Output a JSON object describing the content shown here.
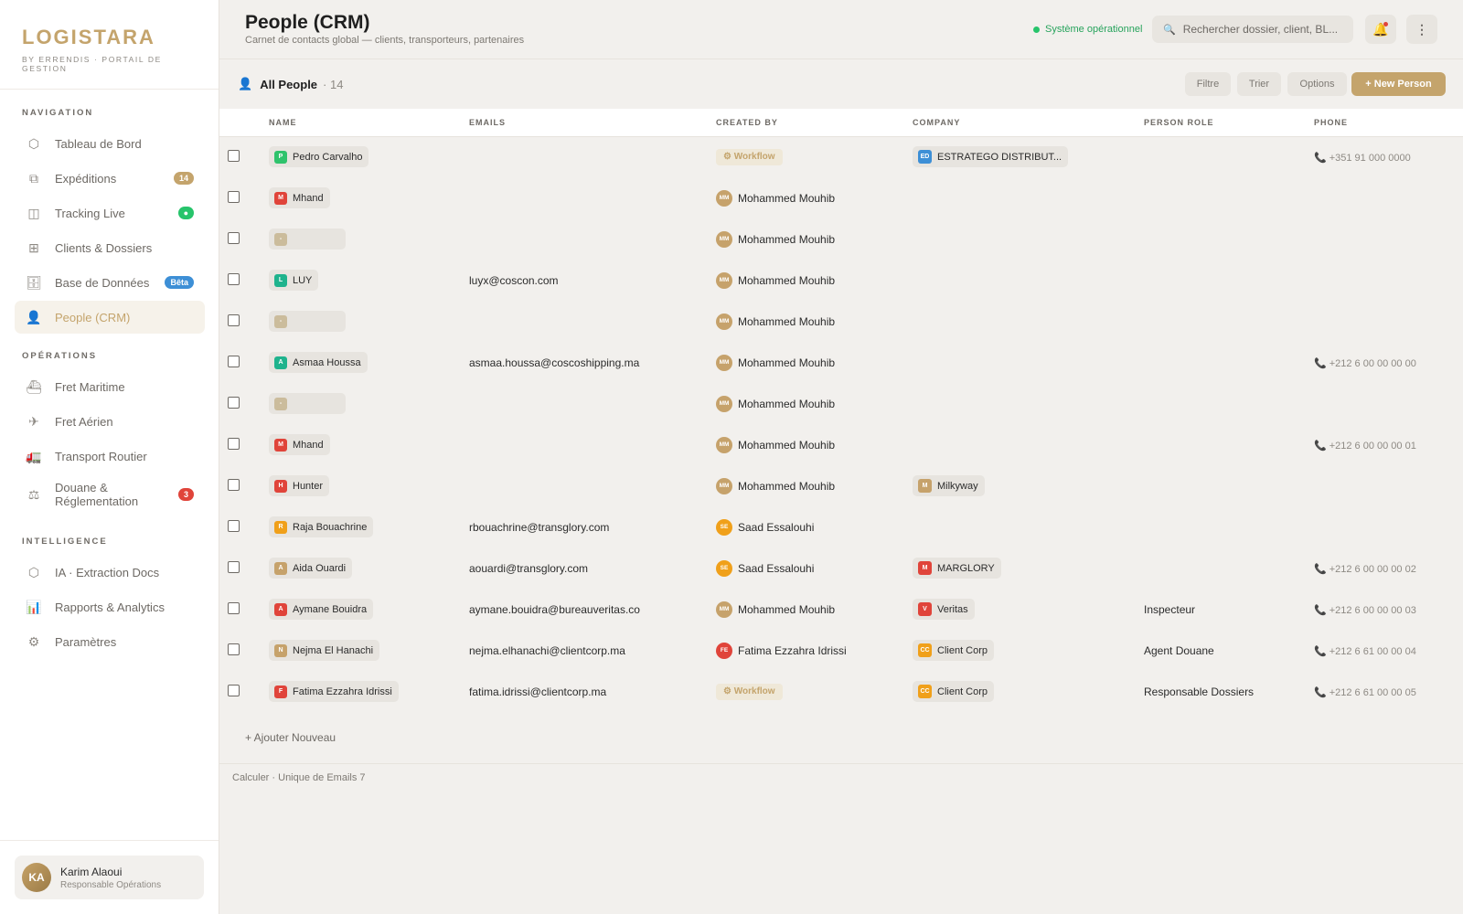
{
  "brand": {
    "name": "LOGISTARA",
    "subtitle": "BY ERRENDIS · PORTAIL DE GESTION"
  },
  "nav": {
    "sections": [
      {
        "title": "NAVIGATION",
        "items": [
          {
            "label": "Tableau de Bord",
            "icon": "dashboard-icon",
            "glyph": "⬡"
          },
          {
            "label": "Expéditions",
            "icon": "shipments-icon",
            "glyph": "⧉",
            "badge": "14",
            "badge_color": "gold"
          },
          {
            "label": "Tracking Live",
            "icon": "tracking-icon",
            "glyph": "◫",
            "badge": "●",
            "badge_color": "green"
          },
          {
            "label": "Clients & Dossiers",
            "icon": "clients-icon",
            "glyph": "⊞"
          },
          {
            "label": "Base de Données",
            "icon": "database-icon",
            "glyph": "🗄",
            "badge": "Bêta",
            "badge_color": "blue"
          },
          {
            "label": "People (CRM)",
            "icon": "person-icon",
            "glyph": "👤",
            "active": true
          }
        ]
      },
      {
        "title": "OPÉRATIONS",
        "items": [
          {
            "label": "Fret Maritime",
            "icon": "ship-icon",
            "glyph": "⛴"
          },
          {
            "label": "Fret Aérien",
            "icon": "plane-icon",
            "glyph": "✈"
          },
          {
            "label": "Transport Routier",
            "icon": "truck-icon",
            "glyph": "🚛"
          },
          {
            "label": "Douane & Réglementation",
            "icon": "scale-icon",
            "glyph": "⚖",
            "badge": "3",
            "badge_color": "red",
            "tall": true
          }
        ]
      },
      {
        "title": "INTELLIGENCE",
        "items": [
          {
            "label": "IA · Extraction Docs",
            "icon": "ai-icon",
            "glyph": "⬡"
          },
          {
            "label": "Rapports & Analytics",
            "icon": "chart-icon",
            "glyph": "📊"
          },
          {
            "label": "Paramètres",
            "icon": "gear-icon",
            "glyph": "⚙"
          }
        ]
      }
    ]
  },
  "user": {
    "initials": "KA",
    "name": "Karim Alaoui",
    "role": "Responsable Opérations"
  },
  "header": {
    "title": "People (CRM)",
    "subtitle": "Carnet de contacts global — clients, transporteurs, partenaires",
    "status": "Système opérationnel",
    "search_placeholder": "Rechercher dossier, client, BL..."
  },
  "toolbar": {
    "view_name": "All People",
    "view_count": "· 14",
    "filter": "Filtre",
    "sort": "Trier",
    "options": "Options",
    "new_person": "+ New Person"
  },
  "table": {
    "columns": [
      "NAME",
      "EMAILS",
      "CREATED BY",
      "COMPANY",
      "PERSON ROLE",
      "PHONE"
    ],
    "rows": [
      {
        "initial": "P",
        "color": "#2fc36c",
        "name": "Pedro Carvalho",
        "email": "",
        "created_by": {
          "type": "workflow",
          "label": "⚙ Workflow"
        },
        "company": {
          "initial": "ED",
          "color": "#3d8fd6",
          "name": "ESTRATEGO DISTRIBUT..."
        },
        "role": "",
        "phone": "+351 91 000 0000"
      },
      {
        "initial": "M",
        "color": "#e0443a",
        "name": "Mhand",
        "email": "",
        "created_by": {
          "initials": "MM",
          "color": "#c6a26b",
          "name": "Mohammed Mouhib"
        },
        "company": null,
        "role": "",
        "phone": ""
      },
      {
        "initial": "-",
        "color": "#cbbc9c",
        "name": "",
        "email": "",
        "created_by": {
          "initials": "MM",
          "color": "#c6a26b",
          "name": "Mohammed Mouhib"
        },
        "company": null,
        "role": "",
        "phone": ""
      },
      {
        "initial": "L",
        "color": "#1fb38d",
        "name": "LUY",
        "email": "luyx@coscon.com",
        "created_by": {
          "initials": "MM",
          "color": "#c6a26b",
          "name": "Mohammed Mouhib"
        },
        "company": null,
        "role": "",
        "phone": ""
      },
      {
        "initial": "-",
        "color": "#cbbc9c",
        "name": "",
        "email": "",
        "created_by": {
          "initials": "MM",
          "color": "#c6a26b",
          "name": "Mohammed Mouhib"
        },
        "company": null,
        "role": "",
        "phone": ""
      },
      {
        "initial": "A",
        "color": "#1fb38d",
        "name": "Asmaa Houssa",
        "email": "asmaa.houssa@coscoshipping.ma",
        "created_by": {
          "initials": "MM",
          "color": "#c6a26b",
          "name": "Mohammed Mouhib"
        },
        "company": null,
        "role": "",
        "phone": "+212 6 00 00 00 00"
      },
      {
        "initial": "-",
        "color": "#cbbc9c",
        "name": "",
        "email": "",
        "created_by": {
          "initials": "MM",
          "color": "#c6a26b",
          "name": "Mohammed Mouhib"
        },
        "company": null,
        "role": "",
        "phone": ""
      },
      {
        "initial": "M",
        "color": "#e0443a",
        "name": "Mhand",
        "email": "",
        "created_by": {
          "initials": "MM",
          "color": "#c6a26b",
          "name": "Mohammed Mouhib"
        },
        "company": null,
        "role": "",
        "phone": "+212 6 00 00 00 01"
      },
      {
        "initial": "H",
        "color": "#e0443a",
        "name": "Hunter",
        "email": "",
        "created_by": {
          "initials": "MM",
          "color": "#c6a26b",
          "name": "Mohammed Mouhib"
        },
        "company": {
          "initial": "M",
          "color": "#c6a26b",
          "name": "Milkyway"
        },
        "role": "",
        "phone": ""
      },
      {
        "initial": "R",
        "color": "#f0a01a",
        "name": "Raja Bouachrine",
        "email": "rbouachrine@transglory.com",
        "created_by": {
          "initials": "SE",
          "color": "#f0a01a",
          "name": "Saad Essalouhi"
        },
        "company": null,
        "role": "",
        "phone": ""
      },
      {
        "initial": "A",
        "color": "#c6a26b",
        "name": "Aida Ouardi",
        "email": "aouardi@transglory.com",
        "created_by": {
          "initials": "SE",
          "color": "#f0a01a",
          "name": "Saad Essalouhi"
        },
        "company": {
          "initial": "M",
          "color": "#e0443a",
          "name": "MARGLORY"
        },
        "role": "",
        "phone": "+212 6 00 00 00 02"
      },
      {
        "initial": "A",
        "color": "#e0443a",
        "name": "Aymane Bouidra",
        "email": "aymane.bouidra@bureauveritas.co",
        "created_by": {
          "initials": "MM",
          "color": "#c6a26b",
          "name": "Mohammed Mouhib"
        },
        "company": {
          "initial": "V",
          "color": "#e0443a",
          "name": "Veritas"
        },
        "role": "Inspecteur",
        "phone": "+212 6 00 00 00 03"
      },
      {
        "initial": "N",
        "color": "#c6a26b",
        "name": "Nejma El Hanachi",
        "email": "nejma.elhanachi@clientcorp.ma",
        "created_by": {
          "initials": "FE",
          "color": "#e0443a",
          "name": "Fatima Ezzahra Idrissi"
        },
        "company": {
          "initial": "CC",
          "color": "#f0a01a",
          "name": "Client Corp"
        },
        "role": "Agent Douane",
        "phone": "+212 6 61 00 00 04"
      },
      {
        "initial": "F",
        "color": "#e0443a",
        "name": "Fatima Ezzahra Idrissi",
        "email": "fatima.idrissi@clientcorp.ma",
        "created_by": {
          "type": "workflow",
          "label": "⚙ Workflow"
        },
        "company": {
          "initial": "CC",
          "color": "#f0a01a",
          "name": "Client Corp"
        },
        "role": "Responsable Dossiers",
        "phone": "+212 6 61 00 00 05"
      }
    ]
  },
  "add_new": "+ Ajouter Nouveau",
  "footer_calc": "Calculer · Unique de Emails 7"
}
